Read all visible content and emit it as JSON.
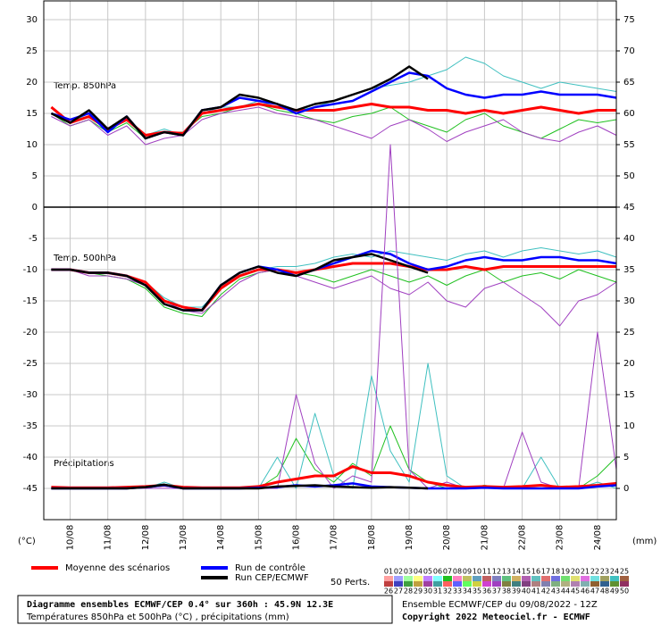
{
  "chart_data": {
    "type": "line",
    "title": "Diagramme ensembles ECMWF/CEP 0.4° sur 360h : 45.9N 12.3E",
    "subtitle": "Températures 850hPa et 500hPa (°C) , précipitations (mm)",
    "run": "Ensemble ECMWF/CEP du 09/08/2022 - 12Z",
    "copyright": "Copyright 2022 Meteociel.fr - ECMWF",
    "y_unit": "(°C)",
    "y2_unit": "(mm)",
    "grid": true,
    "xlim": [
      9.3,
      24.5
    ],
    "xticks": [
      {
        "value": 10,
        "label": "10/08"
      },
      {
        "value": 11,
        "label": "11/08"
      },
      {
        "value": 12,
        "label": "12/08"
      },
      {
        "value": 13,
        "label": "13/08"
      },
      {
        "value": 14,
        "label": "14/08"
      },
      {
        "value": 15,
        "label": "15/08"
      },
      {
        "value": 16,
        "label": "16/08"
      },
      {
        "value": 17,
        "label": "17/08"
      },
      {
        "value": 18,
        "label": "18/08"
      },
      {
        "value": 19,
        "label": "19/08"
      },
      {
        "value": 20,
        "label": "20/08"
      },
      {
        "value": 21,
        "label": "21/08"
      },
      {
        "value": 22,
        "label": "22/08"
      },
      {
        "value": 23,
        "label": "23/08"
      },
      {
        "value": 24,
        "label": "24/08"
      }
    ],
    "ylim": [
      -50,
      33
    ],
    "yticks": [
      30,
      25,
      20,
      15,
      10,
      5,
      0,
      -5,
      -10,
      -15,
      -20,
      -25,
      -30,
      -35,
      -40,
      -45
    ],
    "y2lim": [
      -5,
      78
    ],
    "y2ticks": [
      75,
      70,
      65,
      60,
      55,
      50,
      45,
      40,
      35,
      30,
      25,
      20,
      15,
      10,
      5,
      0
    ],
    "x": [
      9.5,
      10,
      10.5,
      11,
      11.5,
      12,
      12.5,
      13,
      13.5,
      14,
      14.5,
      15,
      15.5,
      16,
      16.5,
      17,
      17.5,
      18,
      18.5,
      19,
      19.5,
      20,
      20.5,
      21,
      21.5,
      22,
      22.5,
      23,
      23.5,
      24,
      24.5
    ],
    "panels": [
      {
        "label": "Temp. 850hPa",
        "series": [
          {
            "name": "07",
            "color": "#20c020",
            "values": [
              15,
              13,
              14,
              12,
              13.5,
              11,
              12,
              12,
              14.5,
              15,
              16,
              16.5,
              15.5,
              15,
              14,
              13.5,
              14.5,
              15,
              16,
              14,
              13,
              12,
              14,
              15,
              13,
              12,
              11,
              12.5,
              14,
              13.5,
              14
            ]
          },
          {
            "name": "24",
            "color": "#40c0c0",
            "values": [
              15,
              13.5,
              15,
              12.5,
              14,
              11.5,
              12.5,
              11.5,
              15,
              16,
              16,
              17,
              16,
              15.5,
              16,
              17,
              18,
              19,
              19.5,
              20,
              21,
              22,
              24,
              23,
              21,
              20,
              19,
              20,
              19.5,
              19,
              18.5
            ]
          },
          {
            "name": "37",
            "color": "#a040c0",
            "values": [
              14.5,
              13,
              14,
              11.5,
              13,
              10,
              11,
              11.5,
              14,
              15,
              15.5,
              16,
              15,
              14.5,
              14,
              13,
              12,
              11,
              13,
              14,
              12.5,
              10.5,
              12,
              13,
              14,
              12,
              11,
              10.5,
              12,
              13,
              11.5
            ]
          },
          {
            "name": "Moyenne des scénarios",
            "color": "#ff0000",
            "values": [
              16,
              13.5,
              14.5,
              12.5,
              14,
              11.5,
              12,
              11.8,
              15,
              15.5,
              16,
              16.5,
              16,
              15.5,
              15.5,
              15.5,
              16,
              16.5,
              16,
              16,
              15.5,
              15.5,
              15,
              15.5,
              15,
              15.5,
              16,
              15.5,
              15,
              15.5,
              15.5
            ]
          },
          {
            "name": "Run de contrôle",
            "color": "#0000ff",
            "values": [
              15,
              14,
              15,
              12,
              14.5,
              11,
              12,
              11.5,
              15.5,
              16,
              17.5,
              17,
              16.5,
              15,
              16,
              16.5,
              17,
              18.5,
              20,
              21.5,
              21,
              19,
              18,
              17.5,
              18,
              18,
              18.5,
              18,
              18,
              18,
              17.5
            ]
          },
          {
            "name": "Run CEP/ECMWF",
            "color": "#000000",
            "values": [
              15,
              13.5,
              15.5,
              12.5,
              14.5,
              11,
              12,
              11.5,
              15.5,
              16,
              18,
              17.5,
              16.5,
              15.5,
              16.5,
              17,
              18,
              19,
              20.5,
              22.5,
              20.5,
              null,
              null,
              null,
              null,
              null,
              null,
              null,
              null,
              null,
              null
            ]
          }
        ]
      },
      {
        "label": "Temp. 500hPa",
        "series": [
          {
            "name": "07",
            "color": "#20c020",
            "values": [
              -10,
              -10,
              -10.5,
              -11,
              -11.5,
              -13,
              -16,
              -17,
              -17.5,
              -14,
              -11.5,
              -10.5,
              -10,
              -10.5,
              -11,
              -12,
              -11,
              -10,
              -11,
              -12,
              -11,
              -12.5,
              -11,
              -10,
              -12,
              -11,
              -10.5,
              -11.5,
              -10,
              -11,
              -12
            ]
          },
          {
            "name": "24",
            "color": "#40c0c0",
            "values": [
              -10,
              -10,
              -10.5,
              -10.5,
              -11,
              -12,
              -14.5,
              -16,
              -16,
              -13,
              -11,
              -10,
              -9.5,
              -9.5,
              -9,
              -8,
              -7.5,
              -8,
              -7,
              -7.5,
              -8,
              -8.5,
              -7.5,
              -7,
              -8,
              -7,
              -6.5,
              -7,
              -7.5,
              -7,
              -8
            ]
          },
          {
            "name": "37",
            "color": "#a040c0",
            "values": [
              -10,
              -10,
              -11,
              -11,
              -11.5,
              -12.5,
              -15,
              -16.5,
              -17,
              -14.5,
              -12,
              -10.5,
              -10,
              -11,
              -12,
              -13,
              -12,
              -11,
              -13,
              -14,
              -12,
              -15,
              -16,
              -13,
              -12,
              -14,
              -16,
              -19,
              -15,
              -14,
              -12
            ]
          },
          {
            "name": "Moyenne des scénarios",
            "color": "#ff0000",
            "values": [
              -10,
              -10,
              -10.5,
              -10.5,
              -11,
              -12,
              -15,
              -16,
              -16.5,
              -13,
              -11,
              -10,
              -10,
              -10.5,
              -10,
              -9.5,
              -9,
              -9,
              -9,
              -9.5,
              -10,
              -10,
              -9.5,
              -10,
              -9.5,
              -9.5,
              -9.5,
              -9.5,
              -9.5,
              -9.5,
              -9.5
            ]
          },
          {
            "name": "Run de contrôle",
            "color": "#0000ff",
            "values": [
              -10,
              -10,
              -10.5,
              -10.5,
              -11,
              -12.5,
              -15.5,
              -16.5,
              -16.5,
              -12.5,
              -10.5,
              -9.5,
              -10,
              -11,
              -10,
              -9,
              -8,
              -7,
              -7.5,
              -9,
              -10,
              -9.5,
              -8.5,
              -8,
              -8.5,
              -8.5,
              -8,
              -8,
              -8.5,
              -8.5,
              -9
            ]
          },
          {
            "name": "Run CEP/ECMWF",
            "color": "#000000",
            "values": [
              -10,
              -10,
              -10.5,
              -10.5,
              -11,
              -12.5,
              -15.5,
              -16.5,
              -16.5,
              -12.5,
              -10.5,
              -9.5,
              -10.5,
              -11,
              -10,
              -8.5,
              -8,
              -7.5,
              -8.5,
              -9.5,
              -10.5,
              null,
              null,
              null,
              null,
              null,
              null,
              null,
              null,
              null,
              null
            ]
          }
        ]
      },
      {
        "label": "Précipitations",
        "axis": "y2",
        "series": [
          {
            "name": "07",
            "color": "#20c020",
            "values": [
              0,
              0,
              0,
              0,
              0,
              0,
              0.5,
              0,
              0,
              0,
              0,
              0,
              2,
              8,
              3,
              1,
              4,
              2,
              10,
              3,
              1,
              0,
              0,
              0.5,
              0,
              0,
              0,
              0,
              0,
              2,
              5
            ]
          },
          {
            "name": "24",
            "color": "#40c0c0",
            "values": [
              0,
              0,
              0,
              0,
              0,
              0,
              1,
              0,
              0,
              0,
              0,
              0,
              5,
              0,
              12,
              2,
              0,
              18,
              6,
              1,
              20,
              2,
              0,
              0,
              0,
              0,
              5,
              0,
              0,
              1,
              0
            ]
          },
          {
            "name": "37",
            "color": "#a040c0",
            "values": [
              0,
              0,
              0,
              0,
              0,
              0,
              0,
              0,
              0,
              0,
              0,
              0,
              0,
              15,
              4,
              0,
              2,
              1,
              55,
              3,
              0,
              1,
              0,
              0,
              0,
              9,
              1,
              0,
              0,
              25,
              3
            ]
          },
          {
            "name": "Moyenne des scénarios",
            "color": "#ff0000",
            "values": [
              0.2,
              0.1,
              0.1,
              0.1,
              0.2,
              0.3,
              0.5,
              0.2,
              0.1,
              0.1,
              0.1,
              0.3,
              1,
              1.5,
              2,
              2,
              3.5,
              2.5,
              2.5,
              2,
              1,
              0.5,
              0.2,
              0.3,
              0.2,
              0.3,
              0.5,
              0.2,
              0.3,
              0.5,
              0.8
            ]
          },
          {
            "name": "Run de contrôle",
            "color": "#0000ff",
            "values": [
              0,
              0,
              0,
              0,
              0,
              0.2,
              0.5,
              0,
              0,
              0,
              0,
              0.1,
              0.2,
              0.5,
              0.3,
              0.5,
              0.8,
              0.3,
              0.2,
              0.1,
              0,
              0,
              0,
              0.1,
              0,
              0,
              0,
              0,
              0,
              0.3,
              0.5
            ]
          },
          {
            "name": "Run CEP/ECMWF",
            "color": "#000000",
            "values": [
              0,
              0,
              0,
              0,
              0,
              0.2,
              0.6,
              0,
              0,
              0,
              0,
              0,
              0.3,
              0.4,
              0.5,
              0.3,
              0.2,
              0.1,
              0.2,
              0.1,
              0,
              null,
              null,
              null,
              null,
              null,
              null,
              null,
              null,
              null,
              null
            ]
          }
        ]
      }
    ],
    "members_label": "50 Perts.",
    "members": [
      {
        "name": "01",
        "color": "#ffa0a0"
      },
      {
        "name": "02",
        "color": "#a0a0ff"
      },
      {
        "name": "03",
        "color": "#a0ffa0"
      },
      {
        "name": "04",
        "color": "#ffff80"
      },
      {
        "name": "05",
        "color": "#c080ff"
      },
      {
        "name": "06",
        "color": "#80ffff"
      },
      {
        "name": "07",
        "color": "#20c020"
      },
      {
        "name": "08",
        "color": "#ff80c0"
      },
      {
        "name": "09",
        "color": "#c0c060"
      },
      {
        "name": "10",
        "color": "#60a0c0"
      },
      {
        "name": "11",
        "color": "#c06060"
      },
      {
        "name": "12",
        "color": "#8080c0"
      },
      {
        "name": "13",
        "color": "#60c080"
      },
      {
        "name": "14",
        "color": "#d0b060"
      },
      {
        "name": "15",
        "color": "#b060b0"
      },
      {
        "name": "16",
        "color": "#60c0c0"
      },
      {
        "name": "17",
        "color": "#e07070"
      },
      {
        "name": "18",
        "color": "#7070e0"
      },
      {
        "name": "19",
        "color": "#70e070"
      },
      {
        "name": "20",
        "color": "#e0e070"
      },
      {
        "name": "21",
        "color": "#e070e0"
      },
      {
        "name": "22",
        "color": "#70e0e0"
      },
      {
        "name": "23",
        "color": "#a0a060"
      },
      {
        "name": "24",
        "color": "#40c0c0"
      },
      {
        "name": "25",
        "color": "#a06040"
      },
      {
        "name": "26",
        "color": "#c04040"
      },
      {
        "name": "27",
        "color": "#4040c0"
      },
      {
        "name": "28",
        "color": "#40a040"
      },
      {
        "name": "29",
        "color": "#c0a040"
      },
      {
        "name": "30",
        "color": "#a040a0"
      },
      {
        "name": "31",
        "color": "#40a0a0"
      },
      {
        "name": "32",
        "color": "#ff6060"
      },
      {
        "name": "33",
        "color": "#6060ff"
      },
      {
        "name": "34",
        "color": "#60ff60"
      },
      {
        "name": "35",
        "color": "#d0d040"
      },
      {
        "name": "36",
        "color": "#d040d0"
      },
      {
        "name": "37",
        "color": "#a040c0"
      },
      {
        "name": "38",
        "color": "#808040"
      },
      {
        "name": "39",
        "color": "#408080"
      },
      {
        "name": "40",
        "color": "#804080"
      },
      {
        "name": "41",
        "color": "#b08080"
      },
      {
        "name": "42",
        "color": "#8080b0"
      },
      {
        "name": "43",
        "color": "#80b080"
      },
      {
        "name": "44",
        "color": "#b0b080"
      },
      {
        "name": "45",
        "color": "#b080b0"
      },
      {
        "name": "46",
        "color": "#80b0b0"
      },
      {
        "name": "47",
        "color": "#906030"
      },
      {
        "name": "48",
        "color": "#306090"
      },
      {
        "name": "49",
        "color": "#609030"
      },
      {
        "name": "50",
        "color": "#903060"
      }
    ]
  }
}
